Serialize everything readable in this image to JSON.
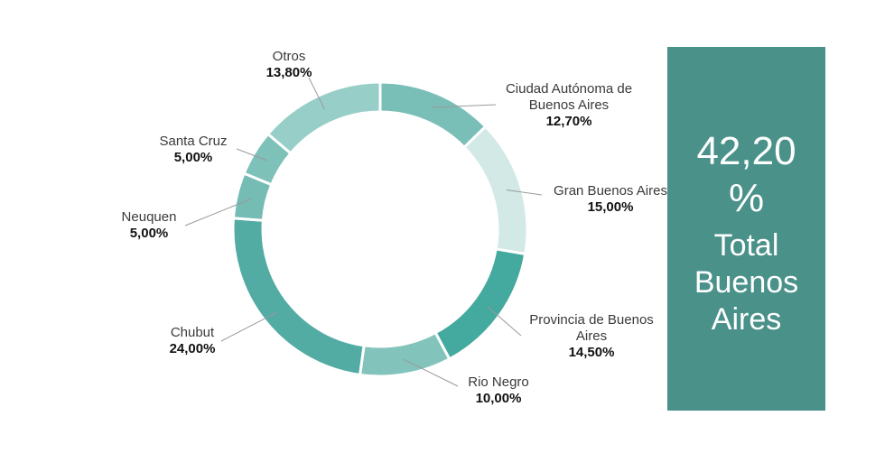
{
  "chart_data": {
    "type": "pie",
    "donut": true,
    "title": "",
    "unit": "%",
    "slices": [
      {
        "name": "Ciudad Autónoma de Buenos Aires",
        "label_lines": [
          "Ciudad Autónoma de",
          "Buenos Aires"
        ],
        "value": 12.7,
        "value_label": "12,70%",
        "color": "#79bfb7"
      },
      {
        "name": "Gran Buenos Aires",
        "label_lines": [
          "Gran Buenos Aires"
        ],
        "value": 15.0,
        "value_label": "15,00%",
        "color": "#d3e9e6"
      },
      {
        "name": "Provincia de Buenos Aires",
        "label_lines": [
          "Provincia de Buenos",
          "Aires"
        ],
        "value": 14.5,
        "value_label": "14,50%",
        "color": "#44a99e"
      },
      {
        "name": "Rio Negro",
        "label_lines": [
          "Rio Negro"
        ],
        "value": 10.0,
        "value_label": "10,00%",
        "color": "#82c4bc"
      },
      {
        "name": "Chubut",
        "label_lines": [
          "Chubut"
        ],
        "value": 24.0,
        "value_label": "24,00%",
        "color": "#52aca4"
      },
      {
        "name": "Neuquen",
        "label_lines": [
          "Neuquen"
        ],
        "value": 5.0,
        "value_label": "5,00%",
        "color": "#74bcb4"
      },
      {
        "name": "Santa Cruz",
        "label_lines": [
          "Santa Cruz"
        ],
        "value": 5.0,
        "value_label": "5,00%",
        "color": "#7dc1b9"
      },
      {
        "name": "Otros",
        "label_lines": [
          "Otros"
        ],
        "value": 13.8,
        "value_label": "13,80%",
        "color": "#97cec8"
      }
    ]
  },
  "summary": {
    "value_line1": "42,20",
    "value_line2": "%",
    "label_lines": [
      "Total",
      "Buenos",
      "Aires"
    ],
    "color": "#4a918a"
  }
}
